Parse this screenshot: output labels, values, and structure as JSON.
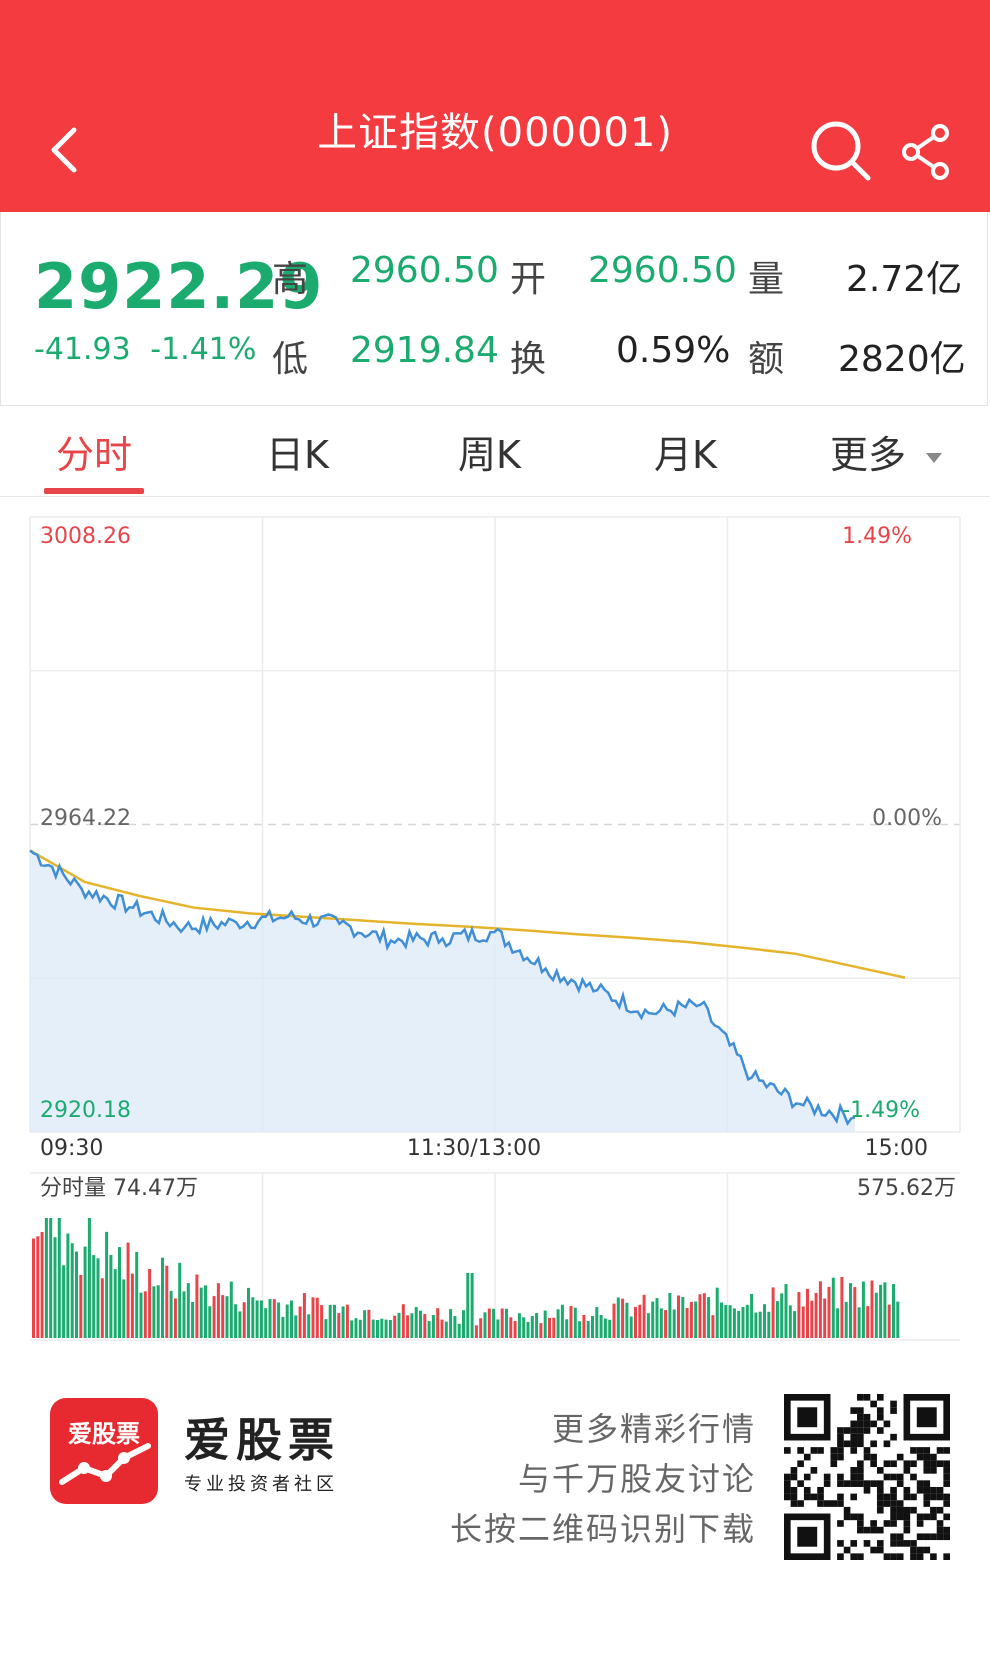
{
  "header": {
    "title": "上证指数(000001)"
  },
  "quote": {
    "price": "2922.29",
    "change": "-41.93",
    "change_pct": "-1.41%",
    "high_label": "高",
    "high": "2960.50",
    "low_label": "低",
    "low": "2919.84",
    "open_label": "开",
    "open": "2960.50",
    "turnover_label": "换",
    "turnover": "0.59%",
    "volume_label": "量",
    "volume": "2.72亿",
    "amount_label": "额",
    "amount": "2820亿"
  },
  "tabs": {
    "items": [
      "分时",
      "日K",
      "周K",
      "月K",
      "更多"
    ],
    "active_index": 0
  },
  "chart": {
    "top_price": "3008.26",
    "top_pct": "1.49%",
    "mid_price": "2964.22",
    "mid_pct": "0.00%",
    "bottom_price": "2920.18",
    "bottom_pct": "-1.49%",
    "time_start": "09:30",
    "time_mid": "11:30/13:00",
    "time_end": "15:00",
    "volume_label": "分时量 74.47万",
    "volume_max": "575.62万"
  },
  "chart_data": {
    "type": "line",
    "ylim": [
      2920.18,
      3008.26
    ],
    "baseline": 2964.22,
    "x": [
      "09:30",
      "09:45",
      "10:00",
      "10:15",
      "10:30",
      "10:45",
      "11:00",
      "11:15",
      "11:30/13:00",
      "13:15",
      "13:30",
      "13:45",
      "14:00",
      "14:15",
      "14:30",
      "14:45",
      "15:00"
    ],
    "series": [
      {
        "values": [
          2960.5,
          2955.0,
          2952.3,
          2949.5,
          2950.2,
          2951.0,
          2950.0,
          2947.6,
          2947.9,
          2948.8,
          2943.6,
          2940.5,
          2937.2,
          2938.4,
          2928.0,
          2924.0,
          2922.29
        ]
      },
      {
        "values": [
          2960.5,
          2956.0,
          2954.0,
          2952.3,
          2951.5,
          2951.0,
          2950.5,
          2950.0,
          2949.6,
          2949.1,
          2948.5,
          2948.0,
          2947.4,
          2946.6,
          2945.7,
          2944.0,
          2942.3
        ]
      }
    ],
    "colors": {
      "price_line": "#3f8ed6",
      "avg_line": "#e6b42c",
      "up": "#e8454a",
      "down": "#1bab6e"
    }
  },
  "footer": {
    "logo_text": "爱股票",
    "brand_name": "爱股票",
    "brand_tag": "专业投资者社区",
    "promo_1": "更多精彩行情",
    "promo_2": "与千万股友讨论",
    "promo_3": "长按二维码识别下载"
  }
}
